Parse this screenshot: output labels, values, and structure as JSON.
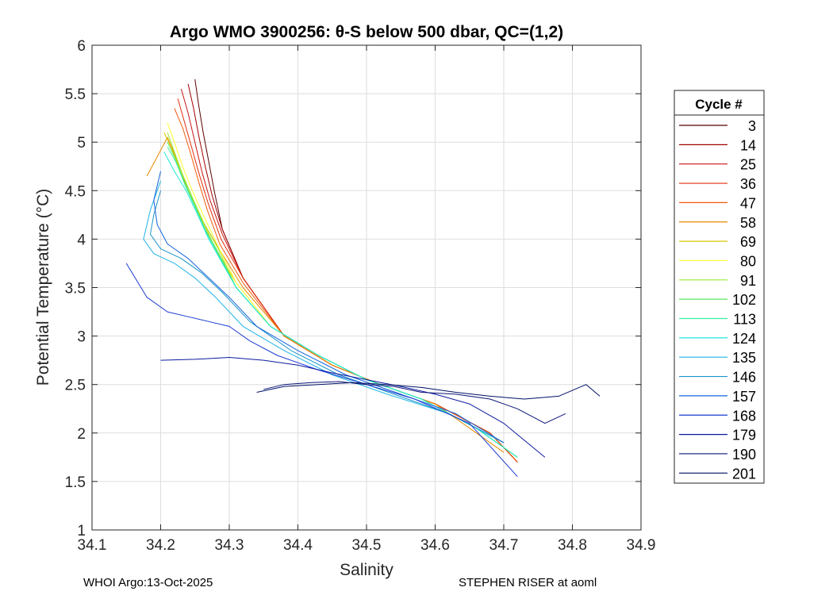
{
  "chart_data": {
    "type": "line",
    "title": "Argo WMO 3900256: θ-S below 500 dbar,  QC=(1,2)",
    "xlabel": "Salinity",
    "ylabel": "Potential Temperature (°C)",
    "xlim": [
      34.1,
      34.9
    ],
    "ylim": [
      1,
      6
    ],
    "xticks": [
      "34.1",
      "34.2",
      "34.3",
      "34.4",
      "34.5",
      "34.6",
      "34.7",
      "34.8",
      "34.9"
    ],
    "yticks": [
      "1",
      "1.5",
      "2",
      "2.5",
      "3",
      "3.5",
      "4",
      "4.5",
      "5",
      "5.5",
      "6"
    ],
    "grid": true,
    "legend": {
      "title": "Cycle #",
      "position": "right",
      "entries": [
        "3",
        "14",
        "25",
        "36",
        "47",
        "58",
        "69",
        "80",
        "91",
        "102",
        "113",
        "124",
        "135",
        "146",
        "157",
        "168",
        "179",
        "190",
        "201"
      ],
      "colors": [
        "#5a0000",
        "#a00000",
        "#c81414",
        "#e32d0a",
        "#f25a0a",
        "#e68a00",
        "#d8c800",
        "#ffff30",
        "#9aee30",
        "#5ae65a",
        "#38f0a0",
        "#20e6d8",
        "#20b4e6",
        "#1a96c8",
        "#1464dc",
        "#1a3ad2",
        "#0a1aa0",
        "#0a1478",
        "#001064"
      ]
    },
    "series": [
      {
        "name": "3",
        "x": [
          34.25,
          34.255,
          34.262,
          34.27,
          34.278,
          34.29,
          34.32,
          34.38,
          34.45,
          34.52,
          34.6,
          34.68,
          34.72
        ],
        "y": [
          5.65,
          5.4,
          5.1,
          4.8,
          4.5,
          4.1,
          3.6,
          3.0,
          2.7,
          2.5,
          2.3,
          2.0,
          1.7
        ]
      },
      {
        "name": "14",
        "x": [
          34.24,
          34.248,
          34.256,
          34.265,
          34.275,
          34.29,
          34.32,
          34.38,
          34.45,
          34.52,
          34.6,
          34.68,
          34.72
        ],
        "y": [
          5.6,
          5.35,
          5.05,
          4.75,
          4.45,
          4.1,
          3.6,
          3.0,
          2.7,
          2.5,
          2.3,
          2.0,
          1.7
        ]
      },
      {
        "name": "25",
        "x": [
          34.23,
          34.24,
          34.25,
          34.26,
          34.272,
          34.29,
          34.32,
          34.38,
          34.45,
          34.52,
          34.6,
          34.68,
          34.72
        ],
        "y": [
          5.55,
          5.3,
          5.0,
          4.7,
          4.4,
          4.05,
          3.6,
          3.0,
          2.7,
          2.5,
          2.3,
          2.0,
          1.7
        ]
      },
      {
        "name": "36",
        "x": [
          34.225,
          34.235,
          34.245,
          34.257,
          34.27,
          34.288,
          34.32,
          34.38,
          34.45,
          34.52,
          34.6,
          34.68,
          34.72
        ],
        "y": [
          5.45,
          5.2,
          4.95,
          4.65,
          4.35,
          4.0,
          3.6,
          3.0,
          2.7,
          2.5,
          2.3,
          2.0,
          1.7
        ]
      },
      {
        "name": "47",
        "x": [
          34.22,
          34.232,
          34.243,
          34.255,
          34.268,
          34.286,
          34.32,
          34.38,
          34.45,
          34.52,
          34.6,
          34.68,
          34.72
        ],
        "y": [
          5.35,
          5.15,
          4.9,
          4.6,
          4.3,
          3.95,
          3.55,
          3.0,
          2.7,
          2.5,
          2.3,
          2.0,
          1.7
        ]
      },
      {
        "name": "58",
        "x": [
          34.18,
          34.195,
          34.21,
          34.225,
          34.24,
          34.26,
          34.285,
          34.32,
          34.38,
          34.45,
          34.52,
          34.6,
          34.7
        ],
        "y": [
          4.65,
          4.85,
          5.05,
          4.8,
          4.5,
          4.2,
          3.9,
          3.5,
          3.0,
          2.7,
          2.5,
          2.3,
          1.8
        ]
      },
      {
        "name": "69",
        "x": [
          34.205,
          34.215,
          34.23,
          34.245,
          34.26,
          34.28,
          34.31,
          34.36,
          34.43,
          34.5,
          34.58,
          34.66,
          34.72
        ],
        "y": [
          5.1,
          4.95,
          4.7,
          4.45,
          4.2,
          3.9,
          3.55,
          3.1,
          2.8,
          2.55,
          2.35,
          2.05,
          1.75
        ]
      },
      {
        "name": "80",
        "x": [
          34.21,
          34.22,
          34.232,
          34.246,
          34.262,
          34.282,
          34.31,
          34.36,
          34.43,
          34.5,
          34.58,
          34.66,
          34.72
        ],
        "y": [
          5.2,
          5.0,
          4.75,
          4.5,
          4.25,
          3.95,
          3.55,
          3.1,
          2.8,
          2.55,
          2.35,
          2.05,
          1.75
        ]
      },
      {
        "name": "91",
        "x": [
          34.21,
          34.22,
          34.233,
          34.248,
          34.264,
          34.284,
          34.31,
          34.36,
          34.43,
          34.5,
          34.58,
          34.66,
          34.72
        ],
        "y": [
          5.1,
          4.9,
          4.65,
          4.4,
          4.15,
          3.9,
          3.5,
          3.1,
          2.8,
          2.55,
          2.35,
          2.05,
          1.75
        ]
      },
      {
        "name": "102",
        "x": [
          34.21,
          34.22,
          34.234,
          34.25,
          34.265,
          34.285,
          34.31,
          34.36,
          34.43,
          34.5,
          34.58,
          34.66,
          34.72
        ],
        "y": [
          5.0,
          4.85,
          4.6,
          4.35,
          4.1,
          3.85,
          3.5,
          3.1,
          2.8,
          2.55,
          2.35,
          2.05,
          1.75
        ]
      },
      {
        "name": "113",
        "x": [
          34.21,
          34.222,
          34.236,
          34.252,
          34.268,
          34.287,
          34.31,
          34.36,
          34.43,
          34.5,
          34.58,
          34.66,
          34.72
        ],
        "y": [
          4.95,
          4.8,
          4.55,
          4.3,
          4.05,
          3.8,
          3.5,
          3.1,
          2.8,
          2.55,
          2.35,
          2.05,
          1.75
        ]
      },
      {
        "name": "124",
        "x": [
          34.205,
          34.22,
          34.237,
          34.254,
          34.27,
          34.29,
          34.31,
          34.36,
          34.43,
          34.5,
          34.58,
          34.66,
          34.72
        ],
        "y": [
          4.9,
          4.7,
          4.5,
          4.25,
          4.0,
          3.75,
          3.5,
          3.1,
          2.8,
          2.55,
          2.35,
          2.05,
          1.75
        ]
      },
      {
        "name": "135",
        "x": [
          34.2,
          34.185,
          34.175,
          34.19,
          34.22,
          34.25,
          34.28,
          34.32,
          34.38,
          34.45,
          34.53,
          34.62,
          34.7
        ],
        "y": [
          4.6,
          4.3,
          4.0,
          3.85,
          3.75,
          3.6,
          3.4,
          3.1,
          2.85,
          2.6,
          2.4,
          2.2,
          1.9
        ]
      },
      {
        "name": "146",
        "x": [
          34.2,
          34.19,
          34.185,
          34.2,
          34.23,
          34.26,
          34.29,
          34.33,
          34.39,
          34.46,
          34.54,
          34.62,
          34.7
        ],
        "y": [
          4.5,
          4.25,
          4.05,
          3.9,
          3.8,
          3.65,
          3.45,
          3.15,
          2.85,
          2.6,
          2.4,
          2.2,
          1.9
        ]
      },
      {
        "name": "157",
        "x": [
          34.2,
          34.19,
          34.195,
          34.21,
          34.24,
          34.27,
          34.3,
          34.34,
          34.4,
          34.47,
          34.55,
          34.63,
          34.7
        ],
        "y": [
          4.7,
          4.4,
          4.15,
          3.95,
          3.8,
          3.6,
          3.4,
          3.1,
          2.85,
          2.6,
          2.4,
          2.2,
          1.9
        ]
      },
      {
        "name": "168",
        "x": [
          34.15,
          34.18,
          34.21,
          34.24,
          34.27,
          34.3,
          34.33,
          34.37,
          34.43,
          34.5,
          34.57,
          34.65,
          34.72
        ],
        "y": [
          3.75,
          3.4,
          3.25,
          3.2,
          3.15,
          3.1,
          2.95,
          2.8,
          2.65,
          2.5,
          2.35,
          2.1,
          1.55
        ]
      },
      {
        "name": "179",
        "x": [
          34.2,
          34.25,
          34.3,
          34.35,
          34.4,
          34.45,
          34.5,
          34.55,
          34.6,
          34.65,
          34.7,
          34.76
        ],
        "y": [
          2.75,
          2.76,
          2.78,
          2.75,
          2.7,
          2.62,
          2.55,
          2.48,
          2.4,
          2.3,
          2.1,
          1.75
        ]
      },
      {
        "name": "190",
        "x": [
          34.35,
          34.38,
          34.42,
          34.46,
          34.5,
          34.54,
          34.58,
          34.63,
          34.68,
          34.72,
          34.76,
          34.79
        ],
        "y": [
          2.45,
          2.5,
          2.52,
          2.53,
          2.5,
          2.48,
          2.42,
          2.4,
          2.35,
          2.25,
          2.1,
          2.2
        ]
      },
      {
        "name": "201",
        "x": [
          34.34,
          34.38,
          34.43,
          34.48,
          34.53,
          34.58,
          34.63,
          34.68,
          34.73,
          34.78,
          34.82,
          34.84
        ],
        "y": [
          2.42,
          2.48,
          2.5,
          2.52,
          2.5,
          2.47,
          2.42,
          2.38,
          2.35,
          2.38,
          2.5,
          2.38
        ]
      }
    ]
  },
  "footer": {
    "left": "WHOI Argo:13-Oct-2025",
    "right": "STEPHEN RISER at aoml"
  }
}
